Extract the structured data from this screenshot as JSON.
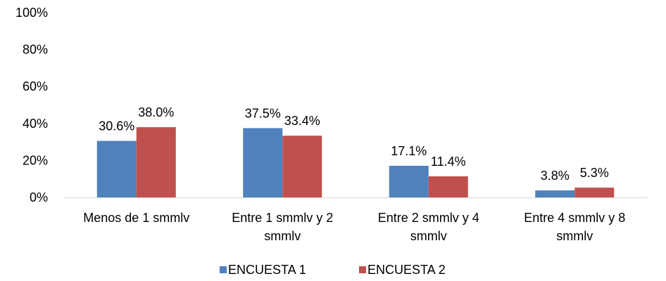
{
  "chart_data": {
    "type": "bar",
    "categories": [
      [
        "Menos de 1 smmlv"
      ],
      [
        "Entre 1 smmlv y 2",
        "smmlv"
      ],
      [
        "Entre 2 smmlv y 4",
        "smmlv"
      ],
      [
        "Entre 4 smmlv y 8",
        "smmlv"
      ]
    ],
    "series": [
      {
        "name": "ENCUESTA 1",
        "color": "#4F81BD",
        "values": [
          30.6,
          37.5,
          17.1,
          3.8
        ],
        "labels": [
          "30.6%",
          "37.5%",
          "17.1%",
          "3.8%"
        ]
      },
      {
        "name": "ENCUESTA 2",
        "color": "#C0504D",
        "values": [
          38.0,
          33.4,
          11.4,
          5.3
        ],
        "labels": [
          "38.0%",
          "33.4%",
          "11.4%",
          "5.3%"
        ]
      }
    ],
    "ylim": [
      0,
      100
    ],
    "yticks": [
      "0%",
      "20%",
      "40%",
      "60%",
      "80%",
      "100%"
    ],
    "title": "",
    "xlabel": "",
    "ylabel": "",
    "grid": false,
    "legend_position": "bottom"
  }
}
